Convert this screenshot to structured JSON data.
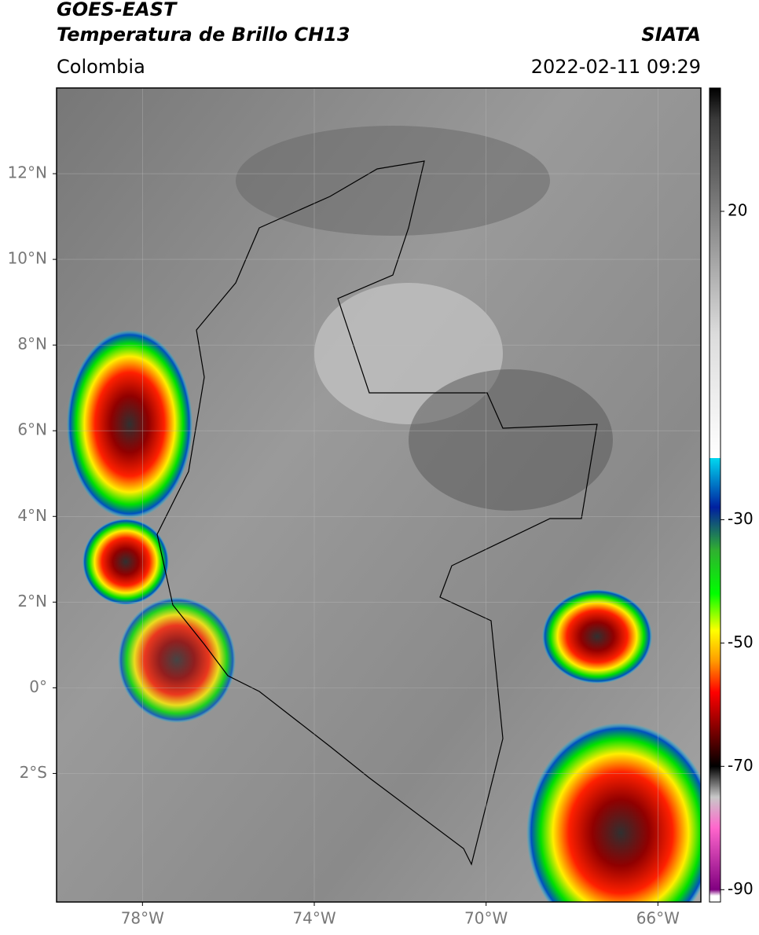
{
  "chart_data": {
    "type": "map",
    "title": "GOES-EAST",
    "subtitle": "Temperatura de Brillo CH13",
    "region": "Colombia",
    "source": "SIATA",
    "timestamp": "2022-02-11 09:29",
    "xlim": [
      -80,
      -65
    ],
    "ylim": [
      -5,
      14
    ],
    "xticks": [
      {
        "value": -78,
        "label": "78°W"
      },
      {
        "value": -74,
        "label": "74°W"
      },
      {
        "value": -70,
        "label": "70°W"
      },
      {
        "value": -66,
        "label": "66°W"
      }
    ],
    "yticks": [
      {
        "value": 12,
        "label": "12°N"
      },
      {
        "value": 10,
        "label": "10°N"
      },
      {
        "value": 8,
        "label": "8°N"
      },
      {
        "value": 6,
        "label": "6°N"
      },
      {
        "value": 4,
        "label": "4°N"
      },
      {
        "value": 2,
        "label": "2°N"
      },
      {
        "value": 0,
        "label": "0°"
      },
      {
        "value": -2,
        "label": "2°S"
      }
    ],
    "grid": true,
    "colorbar": {
      "lim": [
        -92,
        40
      ],
      "ticks": [
        20,
        -30,
        -50,
        -70,
        -90
      ],
      "colorscale": [
        {
          "value": 40,
          "color": "#000000"
        },
        {
          "value": 35,
          "color": "#3a3a3a"
        },
        {
          "value": 20,
          "color": "#808080"
        },
        {
          "value": 0,
          "color": "#dcdcdc"
        },
        {
          "value": -20,
          "color": "#ffffff"
        },
        {
          "value": -20,
          "color": "#00d8f0"
        },
        {
          "value": -28,
          "color": "#0020a0"
        },
        {
          "value": -35,
          "color": "#30b030"
        },
        {
          "value": -42,
          "color": "#00ff00"
        },
        {
          "value": -48,
          "color": "#ffff00"
        },
        {
          "value": -53,
          "color": "#ff9900"
        },
        {
          "value": -58,
          "color": "#ff0000"
        },
        {
          "value": -64,
          "color": "#800000"
        },
        {
          "value": -70,
          "color": "#000000"
        },
        {
          "value": -75,
          "color": "#c8c8c8"
        },
        {
          "value": -80,
          "color": "#ff66cc"
        },
        {
          "value": -90,
          "color": "#800080"
        },
        {
          "value": -91,
          "color": "#ffffff"
        }
      ]
    }
  }
}
